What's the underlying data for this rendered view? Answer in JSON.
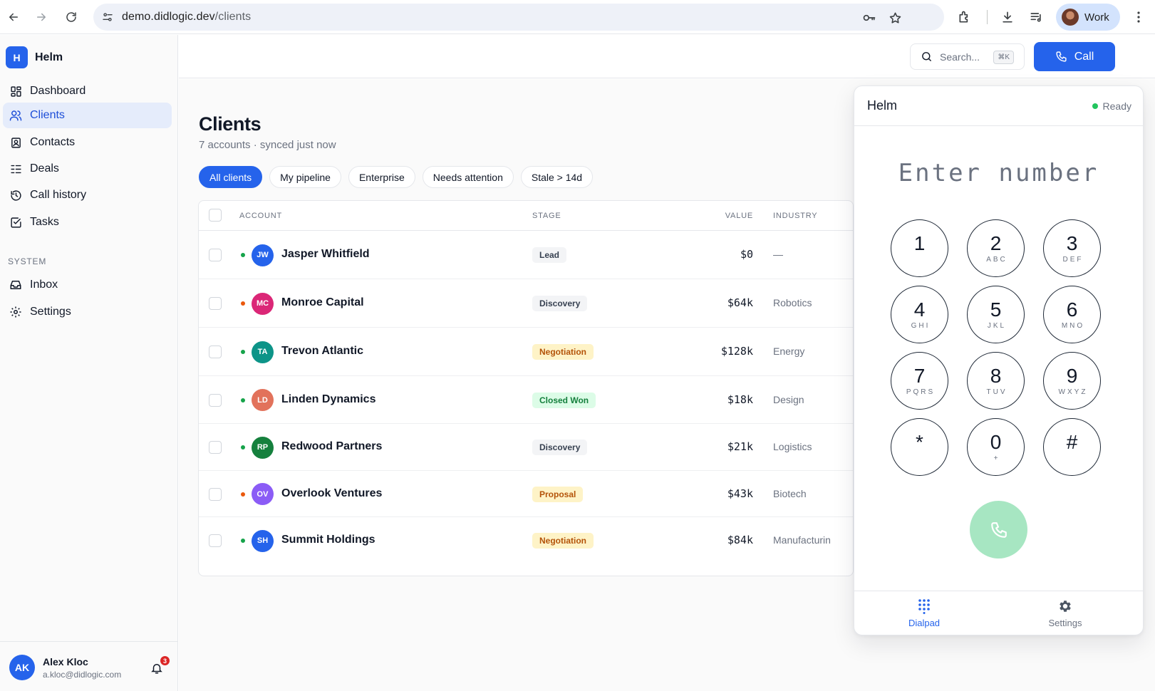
{
  "browser": {
    "url_host": "demo.didlogic.dev",
    "url_path": "/clients",
    "profile_label": "Work"
  },
  "sidebar": {
    "brand_initial": "H",
    "brand_name": "Helm",
    "items": [
      {
        "label": "Dashboard",
        "icon": "grid-icon",
        "active": false
      },
      {
        "label": "Clients",
        "icon": "users-icon",
        "active": true
      },
      {
        "label": "Contacts",
        "icon": "contact-card-icon",
        "active": false
      },
      {
        "label": "Deals",
        "icon": "list-icon",
        "active": false
      },
      {
        "label": "Call history",
        "icon": "history-icon",
        "active": false
      },
      {
        "label": "Tasks",
        "icon": "checkbox-icon",
        "active": false
      }
    ],
    "section_label": "SYSTEM",
    "system_items": [
      {
        "label": "Inbox",
        "icon": "inbox-icon"
      },
      {
        "label": "Settings",
        "icon": "gear-icon"
      }
    ],
    "user": {
      "initials": "AK",
      "name": "Alex Kloc",
      "email": "a.kloc@didlogic.com",
      "notification_count": "3"
    }
  },
  "header": {
    "search_placeholder": "Search...",
    "search_shortcut": "⌘K",
    "call_button": "Call"
  },
  "page": {
    "title": "Clients",
    "subtitle": "7 accounts · synced just now",
    "filters": [
      {
        "label": "All clients",
        "active": true
      },
      {
        "label": "My pipeline",
        "active": false
      },
      {
        "label": "Enterprise",
        "active": false
      },
      {
        "label": "Needs attention",
        "active": false
      },
      {
        "label": "Stale > 14d",
        "active": false
      }
    ]
  },
  "table": {
    "columns": [
      "ACCOUNT",
      "STAGE",
      "VALUE",
      "INDUSTRY"
    ],
    "rows": [
      {
        "initials": "JW",
        "account": "Jasper Whitfield",
        "stage": "Lead",
        "value": "$0",
        "industry": "—",
        "avatar_color": "#2563eb",
        "status_color": "#16a34a",
        "stage_style": "gray"
      },
      {
        "initials": "MC",
        "account": "Monroe Capital",
        "stage": "Discovery",
        "value": "$64k",
        "industry": "Robotics",
        "avatar_color": "#db2777",
        "status_color": "#ea580c",
        "stage_style": "gray"
      },
      {
        "initials": "TA",
        "account": "Trevon Atlantic",
        "stage": "Negotiation",
        "value": "$128k",
        "industry": "Energy",
        "avatar_color": "#0d9488",
        "status_color": "#16a34a",
        "stage_style": "amber"
      },
      {
        "initials": "LD",
        "account": "Linden Dynamics",
        "stage": "Closed Won",
        "value": "$18k",
        "industry": "Design",
        "avatar_color": "#e2725b",
        "status_color": "#16a34a",
        "stage_style": "green"
      },
      {
        "initials": "RP",
        "account": "Redwood Partners",
        "stage": "Discovery",
        "value": "$21k",
        "industry": "Logistics",
        "avatar_color": "#15803d",
        "status_color": "#16a34a",
        "stage_style": "gray"
      },
      {
        "initials": "OV",
        "account": "Overlook Ventures",
        "stage": "Proposal",
        "value": "$43k",
        "industry": "Biotech",
        "avatar_color": "#8b5cf6",
        "status_color": "#ea580c",
        "stage_style": "amber"
      },
      {
        "initials": "SH",
        "account": "Summit Holdings",
        "stage": "Negotiation",
        "value": "$84k",
        "industry": "Manufacturin",
        "avatar_color": "#2563eb",
        "status_color": "#16a34a",
        "stage_style": "amber"
      }
    ]
  },
  "dialer": {
    "title": "Helm",
    "status": "Ready",
    "status_color": "#22c55e",
    "number_placeholder": "Enter number",
    "keys": [
      {
        "digit": "1",
        "letters": ""
      },
      {
        "digit": "2",
        "letters": "ABC"
      },
      {
        "digit": "3",
        "letters": "DEF"
      },
      {
        "digit": "4",
        "letters": "GHI"
      },
      {
        "digit": "5",
        "letters": "JKL"
      },
      {
        "digit": "6",
        "letters": "MNO"
      },
      {
        "digit": "7",
        "letters": "PQRS"
      },
      {
        "digit": "8",
        "letters": "TUV"
      },
      {
        "digit": "9",
        "letters": "WXYZ"
      },
      {
        "digit": "*",
        "letters": ""
      },
      {
        "digit": "0",
        "letters": "+"
      },
      {
        "digit": "#",
        "letters": ""
      }
    ],
    "tabs": [
      {
        "label": "Dialpad",
        "icon": "dialpad-icon",
        "active": true
      },
      {
        "label": "Settings",
        "icon": "gear-icon",
        "active": false
      }
    ]
  },
  "colors": {
    "accent": "#2563eb",
    "stage_gray_bg": "#f3f4f6",
    "stage_amber_bg": "#fef3c7",
    "stage_green_bg": "#dcfce7"
  }
}
